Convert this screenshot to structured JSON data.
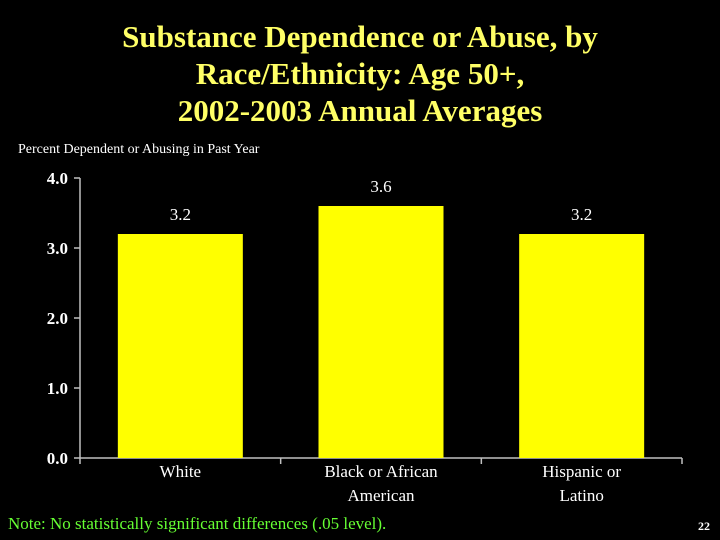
{
  "title_lines": [
    "Substance Dependence or Abuse, by",
    "Race/Ethnicity: Age 50+,",
    "2002-2003 Annual Averages"
  ],
  "note": "Note: No statistically significant differences (.05 level).",
  "page_number": "22",
  "colors": {
    "background": "#000000",
    "title": "#ffff66",
    "bar": "#ffff00",
    "note": "#66ff33",
    "text": "#ffffff"
  },
  "chart_data": {
    "type": "bar",
    "title": "",
    "ylabel": "Percent Dependent or Abusing in Past Year",
    "xlabel": "",
    "categories": [
      [
        "White"
      ],
      [
        "Black or African",
        "American"
      ],
      [
        "Hispanic or",
        "Latino"
      ]
    ],
    "values": [
      3.2,
      3.6,
      3.2
    ],
    "value_labels": [
      "3.2",
      "3.6",
      "3.2"
    ],
    "ylim": [
      0,
      4
    ],
    "yticks": [
      "0.0",
      "1.0",
      "2.0",
      "3.0",
      "4.0"
    ],
    "ytick_values": [
      0,
      1,
      2,
      3,
      4
    ],
    "grid": false,
    "legend": "none"
  }
}
